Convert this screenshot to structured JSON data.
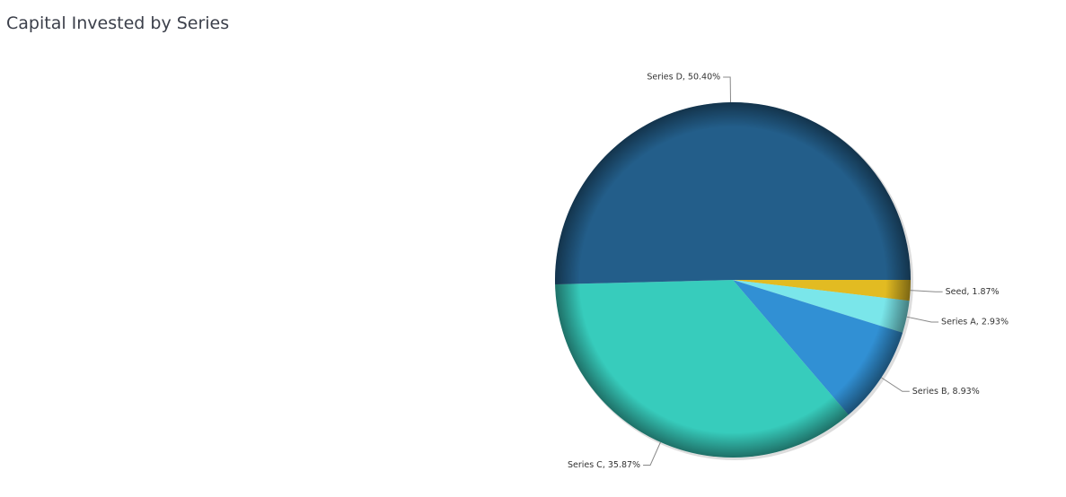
{
  "chart_data": {
    "type": "pie",
    "title": "Capital Invested by Series",
    "categories": [
      "Seed",
      "Series A",
      "Series B",
      "Series C",
      "Series D"
    ],
    "values": [
      1.87,
      2.93,
      8.93,
      35.87,
      50.4
    ],
    "value_labels": [
      "Seed, 1.87%",
      "Series A, 2.93%",
      "Series B, 8.93%",
      "Series C, 35.87%",
      "Series D, 50.40%"
    ],
    "colors": [
      "#e2bb22",
      "#7ae6ea",
      "#3190d4",
      "#37ccbc",
      "#235e8a"
    ]
  }
}
